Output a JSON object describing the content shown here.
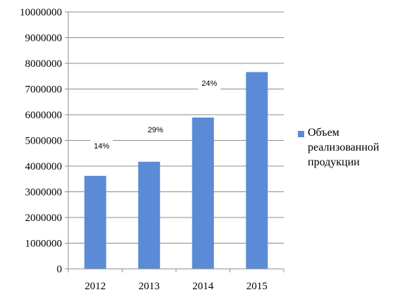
{
  "chart_data": {
    "type": "bar",
    "categories": [
      "2012",
      "2013",
      "2014",
      "2015"
    ],
    "series": [
      {
        "name": "Объем реализованной продукции",
        "values": [
          3620000,
          4170000,
          5890000,
          7660000
        ],
        "color": "#5b8bd6"
      }
    ],
    "ylim": [
      0,
      10000000
    ],
    "yticks": [
      0,
      1000000,
      2000000,
      3000000,
      4000000,
      5000000,
      6000000,
      7000000,
      8000000,
      9000000,
      10000000
    ],
    "grid": true,
    "legend": "right",
    "annotations": [
      {
        "text": "14%",
        "between": [
          "2012",
          "2013"
        ]
      },
      {
        "text": "29%",
        "between": [
          "2013",
          "2014"
        ]
      },
      {
        "text": "24%",
        "between": [
          "2014",
          "2015"
        ]
      }
    ]
  }
}
